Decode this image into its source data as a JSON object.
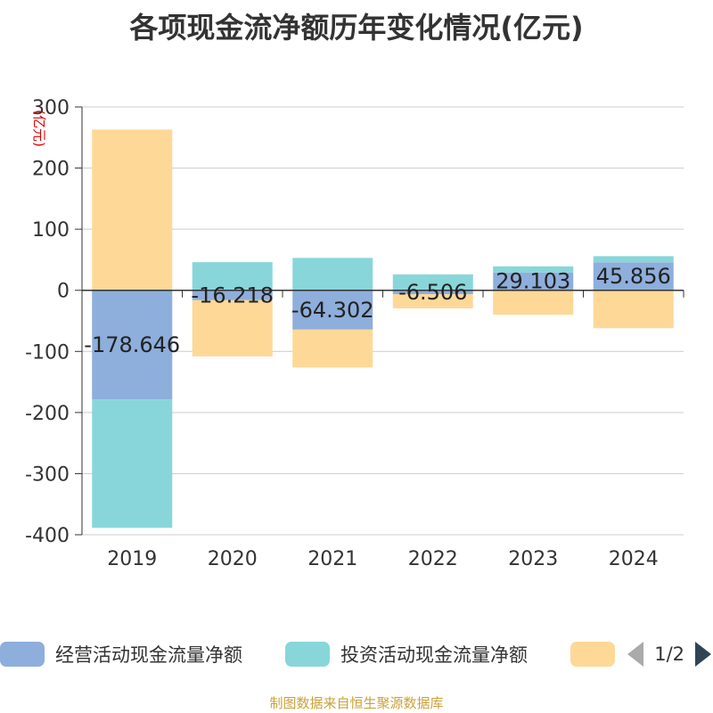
{
  "chart_data": {
    "type": "bar",
    "stacked": true,
    "title": "各项现金流净额历年变化情况(亿元)",
    "ylabel": "(亿元)",
    "ylim": [
      -400,
      300
    ],
    "yticks": [
      300,
      200,
      100,
      0,
      -100,
      -200,
      -300,
      -400
    ],
    "categories": [
      "2019",
      "2020",
      "2021",
      "2022",
      "2023",
      "2024"
    ],
    "grid": true,
    "legend_position": "bottom",
    "series": [
      {
        "name": "经营活动现金流量净额",
        "color": "#8eaedc",
        "values": [
          -178.646,
          -16.218,
          -64.302,
          -6.506,
          29.103,
          45.856
        ],
        "labels": [
          "-178.646",
          "-16.218",
          "-64.302",
          "-6.506",
          "29.103",
          "45.856"
        ]
      },
      {
        "name": "投资活动现金流量净额",
        "color": "#88d6d9",
        "values": [
          -210,
          46,
          53,
          26,
          10,
          10
        ]
      },
      {
        "name": "",
        "color": "#fed897",
        "values": [
          263,
          -92,
          -62,
          -23,
          -40,
          -62
        ]
      }
    ]
  },
  "legend": {
    "page": "1/2"
  },
  "source": "制图数据来自恒生聚源数据库"
}
